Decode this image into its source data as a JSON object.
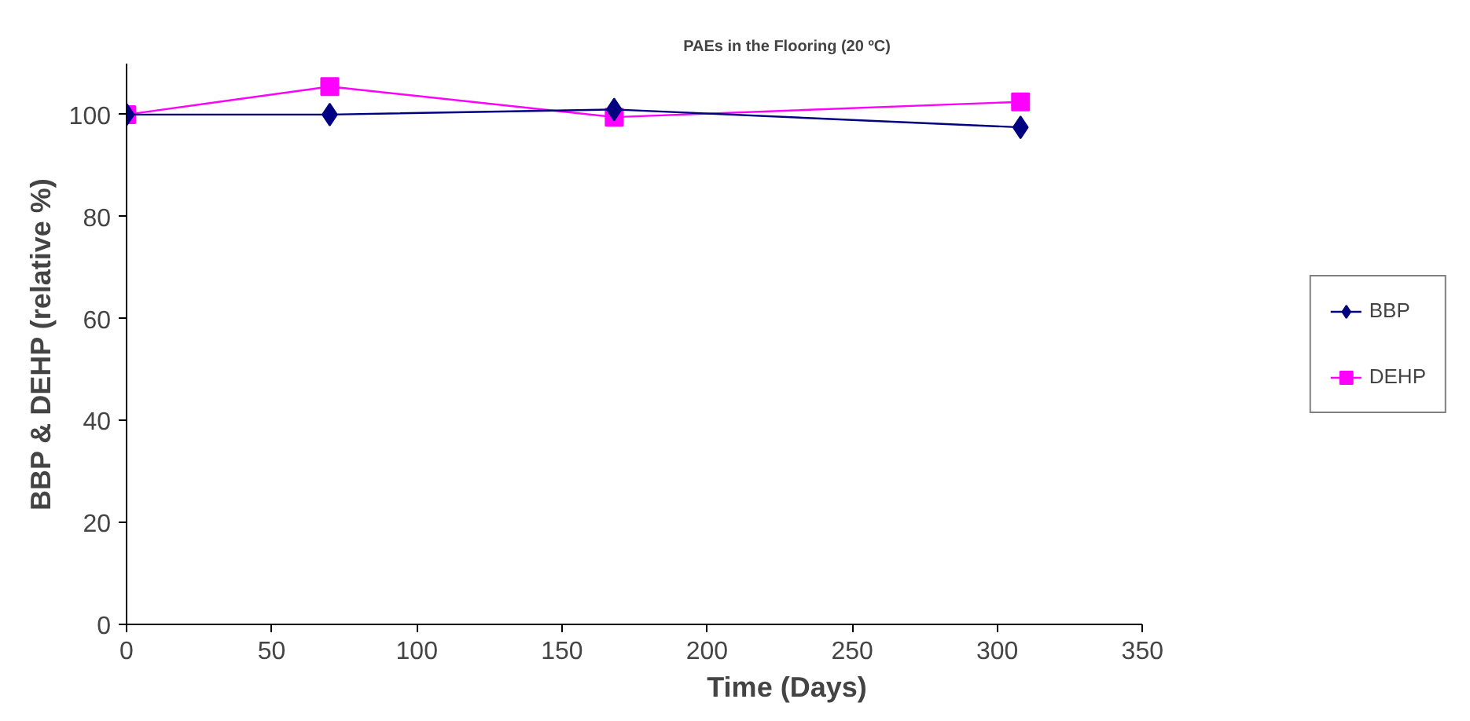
{
  "chart_data": {
    "type": "line",
    "title": "PAEs in the Flooring (20 ºC)",
    "xlabel": "Time (Days)",
    "ylabel": "BBP & DEHP (relative %)",
    "xlim": [
      0,
      350
    ],
    "xticks": [
      0,
      50,
      100,
      150,
      200,
      250,
      300,
      350
    ],
    "ylim": [
      0,
      110
    ],
    "yticks": [
      0,
      20,
      40,
      60,
      80,
      100
    ],
    "grid": false,
    "legend": "right",
    "line_style": "solid",
    "series": [
      {
        "name": "BBP",
        "color": "#000080",
        "marker": "diamond",
        "x": [
          0,
          70,
          168,
          308
        ],
        "values": [
          100,
          100,
          101,
          97.5
        ]
      },
      {
        "name": "DEHP",
        "color": "#ff00ff",
        "marker": "square",
        "x": [
          0,
          70,
          168,
          308
        ],
        "values": [
          100,
          105.5,
          99.5,
          102.5
        ]
      }
    ]
  }
}
